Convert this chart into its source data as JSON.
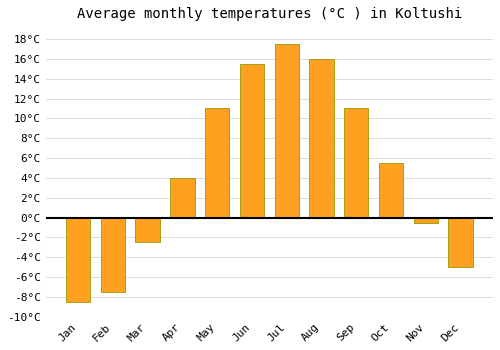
{
  "title": "Average monthly temperatures (°C ) in Koltushi",
  "months": [
    "Jan",
    "Feb",
    "Mar",
    "Apr",
    "May",
    "Jun",
    "Jul",
    "Aug",
    "Sep",
    "Oct",
    "Nov",
    "Dec"
  ],
  "values": [
    -8.5,
    -7.5,
    -2.5,
    4.0,
    11.0,
    15.5,
    17.5,
    16.0,
    11.0,
    5.5,
    -0.5,
    -5.0
  ],
  "bar_color": "#FFA020",
  "bar_edge_color": "#999900",
  "background_color": "#FFFFFF",
  "grid_color": "#DDDDDD",
  "ylim": [
    -10,
    19
  ],
  "yticks": [
    -10,
    -8,
    -6,
    -4,
    -2,
    0,
    2,
    4,
    6,
    8,
    10,
    12,
    14,
    16,
    18
  ],
  "ytick_labels": [
    "-10°C",
    "-8°C",
    "-6°C",
    "-4°C",
    "-2°C",
    "0°C",
    "2°C",
    "4°C",
    "6°C",
    "8°C",
    "10°C",
    "12°C",
    "14°C",
    "16°C",
    "18°C"
  ],
  "title_fontsize": 10,
  "tick_fontsize": 8
}
